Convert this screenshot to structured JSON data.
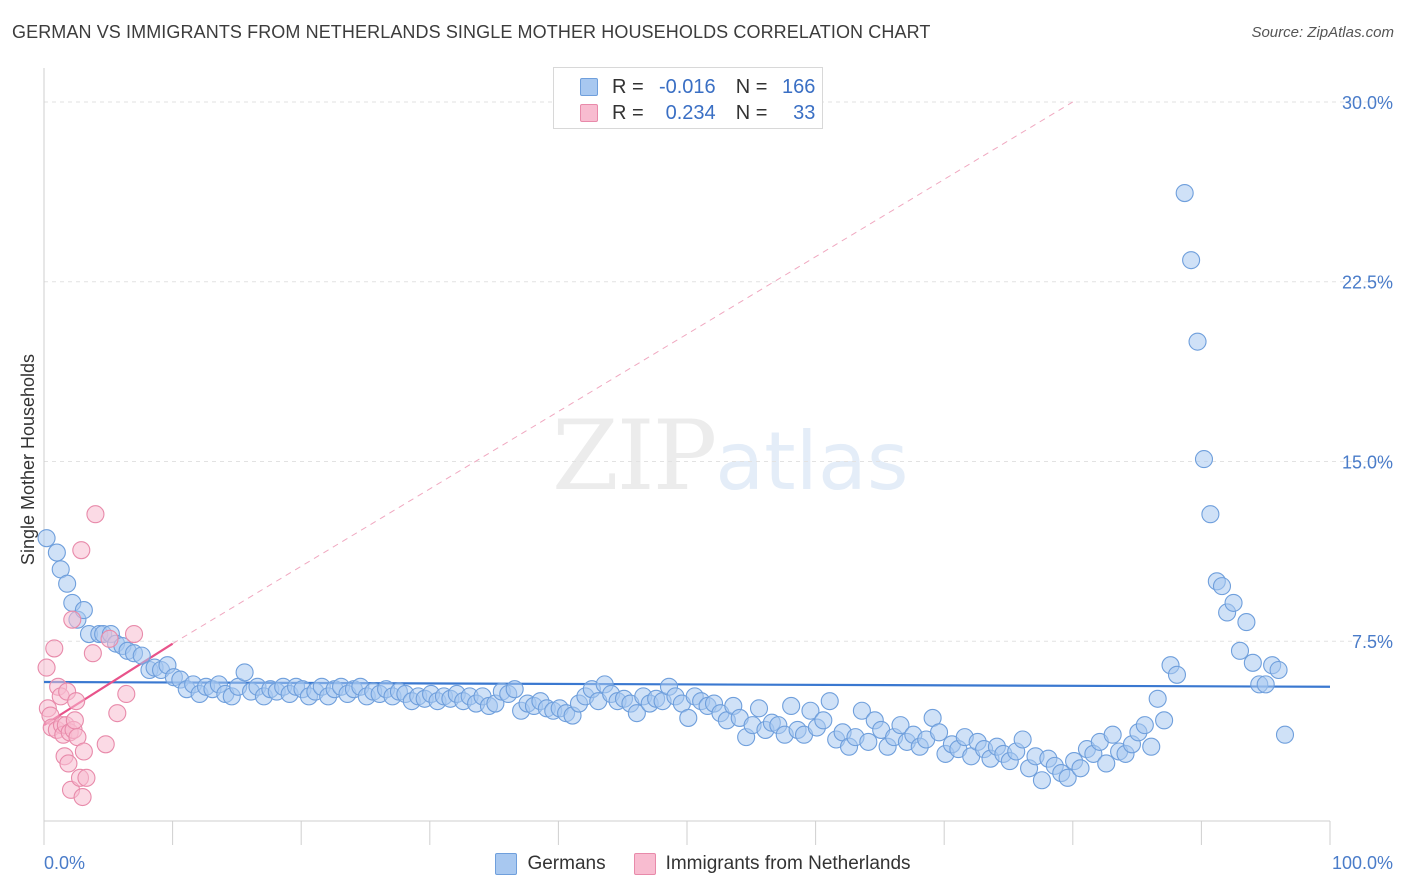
{
  "chart_data": {
    "type": "scatter",
    "title": "GERMAN VS IMMIGRANTS FROM NETHERLANDS SINGLE MOTHER HOUSEHOLDS CORRELATION CHART",
    "source": "Source: ZipAtlas.com",
    "watermark": {
      "zip": "ZIP",
      "atlas": "atlas"
    },
    "xlabel": "",
    "ylabel": "Single Mother Households",
    "xlim": [
      0,
      100
    ],
    "ylim": [
      0,
      31
    ],
    "x_tick_labels": [
      {
        "value": 0,
        "label": "0.0%"
      },
      {
        "value": 100,
        "label": "100.0%"
      }
    ],
    "x_minor_ticks": [
      0,
      10,
      20,
      30,
      40,
      50,
      60,
      70,
      80,
      90,
      100
    ],
    "y_ticks": [
      {
        "value": 7.5,
        "label": "7.5%"
      },
      {
        "value": 15.0,
        "label": "15.0%"
      },
      {
        "value": 22.5,
        "label": "22.5%"
      },
      {
        "value": 30.0,
        "label": "30.0%"
      }
    ],
    "grid": true,
    "legend_position": "top-center",
    "legend": [
      {
        "name": "Germans",
        "r_label": "R =",
        "r": "-0.016",
        "n_label": "N =",
        "n": "166",
        "color": "#a8c8f0",
        "edge": "#6f9fdc"
      },
      {
        "name": "Immigrants from Netherlands",
        "r_label": "R =",
        "r": "0.234",
        "n_label": "N =",
        "n": "33",
        "color": "#f8bcd0",
        "edge": "#e88aaa"
      }
    ],
    "series": [
      {
        "name": "Germans",
        "color": "#a8c8f0",
        "edge": "#6f9fdc",
        "trend": {
          "x": [
            0,
            100
          ],
          "y": [
            5.8,
            5.6
          ],
          "color": "#3a78d0"
        },
        "points": [
          [
            0.2,
            11.8
          ],
          [
            1.0,
            11.2
          ],
          [
            1.3,
            10.5
          ],
          [
            1.8,
            9.9
          ],
          [
            2.2,
            9.1
          ],
          [
            2.6,
            8.4
          ],
          [
            3.1,
            8.8
          ],
          [
            3.5,
            7.8
          ],
          [
            4.3,
            7.8
          ],
          [
            4.6,
            7.8
          ],
          [
            5.2,
            7.8
          ],
          [
            5.6,
            7.4
          ],
          [
            6.1,
            7.3
          ],
          [
            6.5,
            7.1
          ],
          [
            7.0,
            7.0
          ],
          [
            7.6,
            6.9
          ],
          [
            8.2,
            6.3
          ],
          [
            8.6,
            6.4
          ],
          [
            9.1,
            6.3
          ],
          [
            9.6,
            6.5
          ],
          [
            10.1,
            6.0
          ],
          [
            10.6,
            5.9
          ],
          [
            11.1,
            5.5
          ],
          [
            11.6,
            5.7
          ],
          [
            12.1,
            5.3
          ],
          [
            12.6,
            5.6
          ],
          [
            13.1,
            5.5
          ],
          [
            13.6,
            5.7
          ],
          [
            14.1,
            5.3
          ],
          [
            14.6,
            5.2
          ],
          [
            15.1,
            5.6
          ],
          [
            15.6,
            6.2
          ],
          [
            16.1,
            5.4
          ],
          [
            16.6,
            5.6
          ],
          [
            17.1,
            5.2
          ],
          [
            17.6,
            5.5
          ],
          [
            18.1,
            5.4
          ],
          [
            18.6,
            5.6
          ],
          [
            19.1,
            5.3
          ],
          [
            19.6,
            5.6
          ],
          [
            20.1,
            5.5
          ],
          [
            20.6,
            5.2
          ],
          [
            21.1,
            5.4
          ],
          [
            21.6,
            5.6
          ],
          [
            22.1,
            5.2
          ],
          [
            22.6,
            5.5
          ],
          [
            23.1,
            5.6
          ],
          [
            23.6,
            5.3
          ],
          [
            24.1,
            5.5
          ],
          [
            24.6,
            5.6
          ],
          [
            25.1,
            5.2
          ],
          [
            25.6,
            5.4
          ],
          [
            26.1,
            5.3
          ],
          [
            26.6,
            5.5
          ],
          [
            27.1,
            5.2
          ],
          [
            27.6,
            5.4
          ],
          [
            28.1,
            5.3
          ],
          [
            28.6,
            5.0
          ],
          [
            29.1,
            5.2
          ],
          [
            29.6,
            5.1
          ],
          [
            30.1,
            5.3
          ],
          [
            30.6,
            5.0
          ],
          [
            31.1,
            5.2
          ],
          [
            31.6,
            5.1
          ],
          [
            32.1,
            5.3
          ],
          [
            32.6,
            5.0
          ],
          [
            33.1,
            5.2
          ],
          [
            33.6,
            4.9
          ],
          [
            34.1,
            5.2
          ],
          [
            34.6,
            4.8
          ],
          [
            35.1,
            4.9
          ],
          [
            35.6,
            5.4
          ],
          [
            36.1,
            5.3
          ],
          [
            36.6,
            5.5
          ],
          [
            37.1,
            4.6
          ],
          [
            37.6,
            4.9
          ],
          [
            38.1,
            4.8
          ],
          [
            38.6,
            5.0
          ],
          [
            39.1,
            4.7
          ],
          [
            39.6,
            4.6
          ],
          [
            40.1,
            4.7
          ],
          [
            40.6,
            4.5
          ],
          [
            41.1,
            4.4
          ],
          [
            41.6,
            4.9
          ],
          [
            42.1,
            5.2
          ],
          [
            42.6,
            5.5
          ],
          [
            43.1,
            5.0
          ],
          [
            43.6,
            5.7
          ],
          [
            44.1,
            5.3
          ],
          [
            44.6,
            5.0
          ],
          [
            45.1,
            5.1
          ],
          [
            45.6,
            4.9
          ],
          [
            46.1,
            4.5
          ],
          [
            46.6,
            5.2
          ],
          [
            47.1,
            4.9
          ],
          [
            47.6,
            5.1
          ],
          [
            48.1,
            5.0
          ],
          [
            48.6,
            5.6
          ],
          [
            49.1,
            5.2
          ],
          [
            49.6,
            4.9
          ],
          [
            50.1,
            4.3
          ],
          [
            50.6,
            5.2
          ],
          [
            51.1,
            5.0
          ],
          [
            51.6,
            4.8
          ],
          [
            52.1,
            4.9
          ],
          [
            52.6,
            4.5
          ],
          [
            53.1,
            4.2
          ],
          [
            53.6,
            4.8
          ],
          [
            54.1,
            4.3
          ],
          [
            54.6,
            3.5
          ],
          [
            55.1,
            4.0
          ],
          [
            55.6,
            4.7
          ],
          [
            56.1,
            3.8
          ],
          [
            56.6,
            4.1
          ],
          [
            57.1,
            4.0
          ],
          [
            57.6,
            3.6
          ],
          [
            58.1,
            4.8
          ],
          [
            58.6,
            3.8
          ],
          [
            59.1,
            3.6
          ],
          [
            59.6,
            4.6
          ],
          [
            60.1,
            3.9
          ],
          [
            60.6,
            4.2
          ],
          [
            61.1,
            5.0
          ],
          [
            61.6,
            3.4
          ],
          [
            62.1,
            3.7
          ],
          [
            62.6,
            3.1
          ],
          [
            63.1,
            3.5
          ],
          [
            63.6,
            4.6
          ],
          [
            64.1,
            3.3
          ],
          [
            64.6,
            4.2
          ],
          [
            65.1,
            3.8
          ],
          [
            65.6,
            3.1
          ],
          [
            66.1,
            3.5
          ],
          [
            66.6,
            4.0
          ],
          [
            67.1,
            3.3
          ],
          [
            67.6,
            3.6
          ],
          [
            68.1,
            3.1
          ],
          [
            68.6,
            3.4
          ],
          [
            69.1,
            4.3
          ],
          [
            69.6,
            3.7
          ],
          [
            70.1,
            2.8
          ],
          [
            70.6,
            3.2
          ],
          [
            71.1,
            3.0
          ],
          [
            71.6,
            3.5
          ],
          [
            72.1,
            2.7
          ],
          [
            72.6,
            3.3
          ],
          [
            73.1,
            3.0
          ],
          [
            73.6,
            2.6
          ],
          [
            74.1,
            3.1
          ],
          [
            74.6,
            2.8
          ],
          [
            75.1,
            2.5
          ],
          [
            75.6,
            2.9
          ],
          [
            76.1,
            3.4
          ],
          [
            76.6,
            2.2
          ],
          [
            77.1,
            2.7
          ],
          [
            77.6,
            1.7
          ],
          [
            78.1,
            2.6
          ],
          [
            78.6,
            2.3
          ],
          [
            79.1,
            2.0
          ],
          [
            79.6,
            1.8
          ],
          [
            80.1,
            2.5
          ],
          [
            80.6,
            2.2
          ],
          [
            81.1,
            3.0
          ],
          [
            81.6,
            2.8
          ],
          [
            82.1,
            3.3
          ],
          [
            82.6,
            2.4
          ],
          [
            83.1,
            3.6
          ],
          [
            83.6,
            2.9
          ],
          [
            84.1,
            2.8
          ],
          [
            84.6,
            3.2
          ],
          [
            85.1,
            3.7
          ],
          [
            85.6,
            4.0
          ],
          [
            86.1,
            3.1
          ],
          [
            86.6,
            5.1
          ],
          [
            87.1,
            4.2
          ],
          [
            87.6,
            6.5
          ],
          [
            88.1,
            6.1
          ],
          [
            88.7,
            26.2
          ],
          [
            89.2,
            23.4
          ],
          [
            89.7,
            20.0
          ],
          [
            90.2,
            15.1
          ],
          [
            90.7,
            12.8
          ],
          [
            91.2,
            10.0
          ],
          [
            91.6,
            9.8
          ],
          [
            92.0,
            8.7
          ],
          [
            92.5,
            9.1
          ],
          [
            93.0,
            7.1
          ],
          [
            93.5,
            8.3
          ],
          [
            94.0,
            6.6
          ],
          [
            94.5,
            5.7
          ],
          [
            95.0,
            5.7
          ],
          [
            95.5,
            6.5
          ],
          [
            96.0,
            6.3
          ],
          [
            96.5,
            3.6
          ]
        ]
      },
      {
        "name": "Immigrants from Netherlands",
        "color": "#f8bcd0",
        "edge": "#e88aaa",
        "trend": {
          "x": [
            0,
            10
          ],
          "y": [
            4.0,
            7.4
          ],
          "color": "#e8538a",
          "dashed_extension_to": [
            80,
            30.0
          ]
        },
        "points": [
          [
            0.2,
            6.4
          ],
          [
            0.3,
            4.7
          ],
          [
            0.5,
            4.4
          ],
          [
            0.6,
            3.9
          ],
          [
            0.8,
            7.2
          ],
          [
            1.0,
            3.8
          ],
          [
            1.1,
            5.6
          ],
          [
            1.3,
            5.2
          ],
          [
            1.4,
            4.0
          ],
          [
            1.5,
            3.6
          ],
          [
            1.6,
            2.7
          ],
          [
            1.7,
            4.0
          ],
          [
            1.8,
            5.4
          ],
          [
            1.9,
            2.4
          ],
          [
            2.0,
            3.7
          ],
          [
            2.1,
            1.3
          ],
          [
            2.2,
            8.4
          ],
          [
            2.3,
            3.8
          ],
          [
            2.4,
            4.2
          ],
          [
            2.5,
            5.0
          ],
          [
            2.6,
            3.5
          ],
          [
            2.8,
            1.8
          ],
          [
            2.9,
            11.3
          ],
          [
            3.0,
            1.0
          ],
          [
            3.1,
            2.9
          ],
          [
            3.3,
            1.8
          ],
          [
            3.8,
            7.0
          ],
          [
            4.0,
            12.8
          ],
          [
            4.8,
            3.2
          ],
          [
            5.1,
            7.6
          ],
          [
            5.7,
            4.5
          ],
          [
            6.4,
            5.3
          ],
          [
            7.0,
            7.8
          ]
        ]
      }
    ]
  }
}
